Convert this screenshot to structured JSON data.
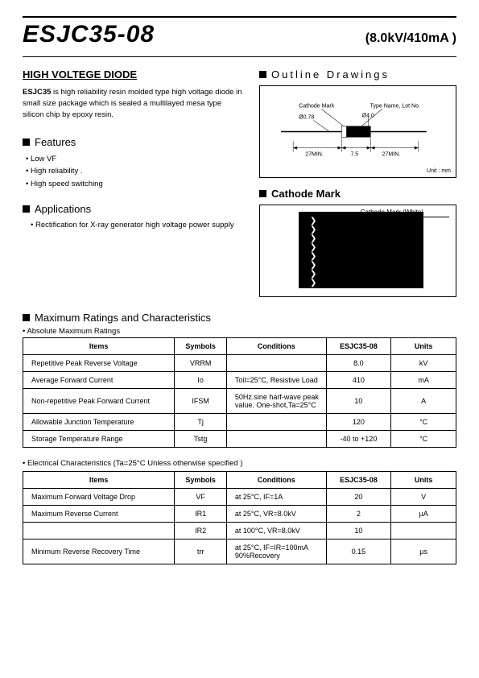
{
  "header": {
    "part_number": "ESJC35-08",
    "spec": "(8.0kV/410mA )"
  },
  "title_section": {
    "heading": "HIGH VOLTEGE DIODE",
    "description_prefix": "ESJC35",
    "description_rest": " is high reliability resin molded type high voltage diode in small size package which is sealed a multilayed mesa type silicon chip by epoxy resin."
  },
  "features": {
    "heading": "Features",
    "items": [
      "Low VF",
      "High reliability .",
      "High speed switching"
    ]
  },
  "applications": {
    "heading": "Applications",
    "item": "Rectification for X-ray generator high voltage power supply"
  },
  "outline": {
    "heading": "Outline  Drawings",
    "labels": {
      "cathode_mark": "Cathode Mark",
      "type_name": "Type Name, Lot No.",
      "d078": "Ø0.78",
      "d40": "Ø4.0",
      "l27a": "27MIN.",
      "l75": "7.5",
      "l27b": "27MIN.",
      "unit": "Unit : mm"
    }
  },
  "cathode_mark": {
    "heading": "Cathode Mark",
    "label": "Cathode Mark  (White)"
  },
  "max_ratings": {
    "heading": "Maximum Ratings and Characteristics",
    "sub": "• Absolute Maximum Ratings",
    "columns": [
      "Items",
      "Symbols",
      "Conditions",
      "ESJC35-08",
      "Units"
    ],
    "rows": [
      {
        "item": "Repetitive Peak Reverse Voltage",
        "sym": "VRRM",
        "cond": "",
        "val": "8.0",
        "unit": "kV"
      },
      {
        "item": "Average Forward Current",
        "sym": "Io",
        "cond": "Toil=25°C, Resistive Load",
        "val": "410",
        "unit": "mA"
      },
      {
        "item": "Non-repetitive Peak Forward Current",
        "sym": "IFSM",
        "cond": "50Hz.sine harf-wave peak value. One-shot,Ta=25°C",
        "val": "10",
        "unit": "A"
      },
      {
        "item": "Allowable Junction Temperature",
        "sym": "Tj",
        "cond": "",
        "val": "120",
        "unit": "°C"
      },
      {
        "item": "Storage Temperature Range",
        "sym": "Tstg",
        "cond": "",
        "val": "-40  to +120",
        "unit": "°C"
      }
    ]
  },
  "elec_char": {
    "sub": "• Electrical  Characteristics  (Ta=25°C  Unless  otherwise  specified )",
    "columns": [
      "Items",
      "Symbols",
      "Conditions",
      "ESJC35-08",
      "Units"
    ],
    "rows": [
      {
        "item": "Maximum Forward Voltage Drop",
        "sym": "VF",
        "cond": "at 25°C,  IF=1A",
        "val": "20",
        "unit": "V"
      },
      {
        "item": "Maximum Reverse Current",
        "sym": "IR1",
        "cond": "at 25°C,  VR=8.0kV",
        "val": "2",
        "unit": "µA"
      },
      {
        "item": "",
        "sym": "IR2",
        "cond": "at 100°C,  VR=8.0kV",
        "val": "10",
        "unit": ""
      },
      {
        "item": "Minimum Reverse Recovery Time",
        "sym": "trr",
        "cond": "at 25°C,  IF=IR=100mA 90%Recovery",
        "val": "0.15",
        "unit": "µs"
      }
    ]
  },
  "style": {
    "col_widths": {
      "items": "35%",
      "symbols": "12%",
      "conditions": "23%",
      "value": "15%",
      "units": "15%"
    }
  }
}
